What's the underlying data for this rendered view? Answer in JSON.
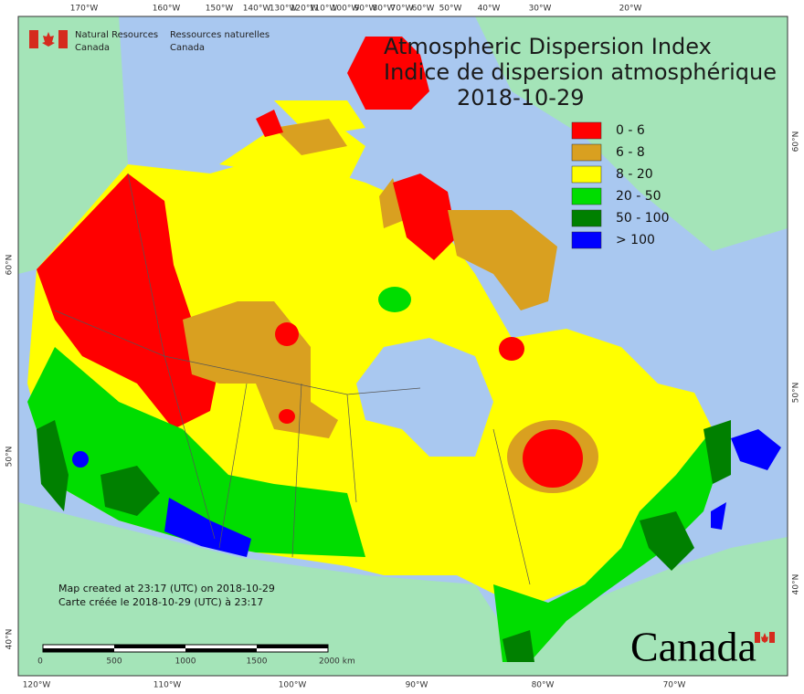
{
  "header": {
    "english": [
      "Natural Resources",
      "Canada"
    ],
    "french": [
      "Ressources naturelles",
      "Canada"
    ]
  },
  "title": [
    "Atmospheric Dispersion Index",
    "Indice de dispersion atmosphérique",
    "2018-10-29"
  ],
  "legend": [
    {
      "label": "0 - 6",
      "color": "#ff0000"
    },
    {
      "label": "6 - 8",
      "color": "#d9a020"
    },
    {
      "label": "8 - 20",
      "color": "#ffff00"
    },
    {
      "label": "20 - 50",
      "color": "#00dd00"
    },
    {
      "label": "50 - 100",
      "color": "#008000"
    },
    {
      "label": "> 100",
      "color": "#0000ff"
    }
  ],
  "graticule": {
    "top": [
      "170°W",
      "160°W",
      "150°W",
      "140°W",
      "130°W",
      "120°W",
      "110°W",
      "100°W",
      "90°W",
      "80°W",
      "70°W",
      "60°W",
      "50°W",
      "40°W",
      "30°W",
      "20°W"
    ],
    "bottom": [
      "120°W",
      "110°W",
      "100°W",
      "90°W",
      "80°W",
      "70°W"
    ],
    "left": [
      "60°N",
      "50°N",
      "40°N"
    ],
    "right": [
      "60°N",
      "50°N",
      "40°N"
    ]
  },
  "notes": [
    "Map created at 23:17 (UTC) on 2018-10-29",
    "Carte créée le 2018-10-29 (UTC) à 23:17"
  ],
  "scale_bar": [
    "0",
    "500",
    "1000",
    "1500",
    "2000 km"
  ],
  "wordmark": "Canada"
}
